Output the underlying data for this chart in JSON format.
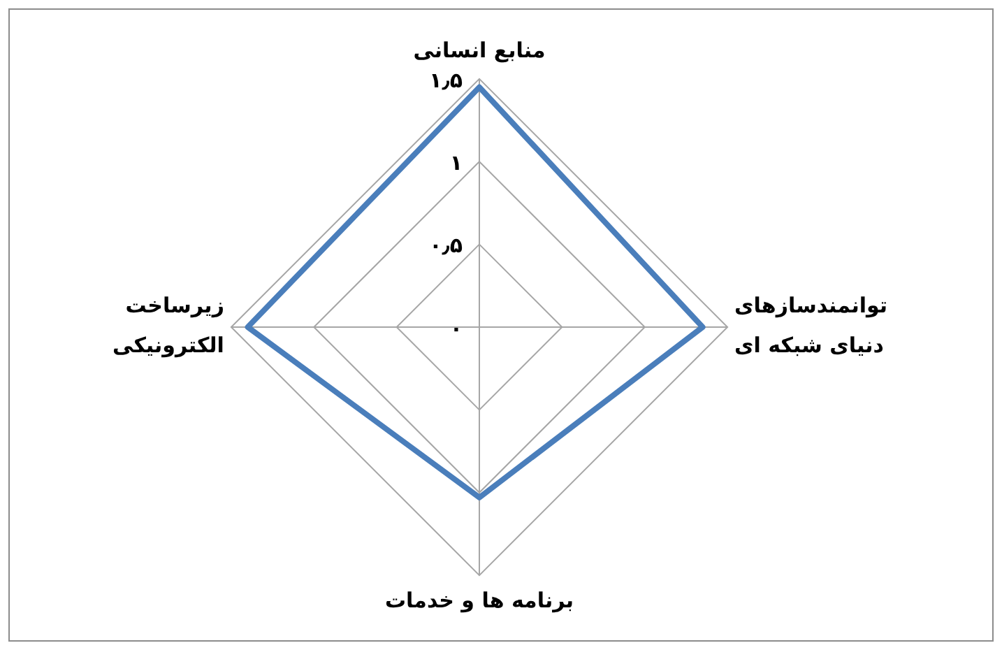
{
  "chart_data": {
    "type": "radar",
    "categories": [
      "منابع انسانی",
      "توانمندسازهای دنیای شبکه ای",
      "برنامه ها و خدمات",
      "زیرساخت الکترونیکی"
    ],
    "series": [
      {
        "color": "#4a7ebb",
        "values": [
          1.45,
          1.35,
          1.03,
          1.4
        ]
      }
    ],
    "ylim": [
      0,
      1.5
    ],
    "yticks": [
      {
        "value": 0,
        "label": "۰"
      },
      {
        "value": 0.5,
        "label": "۰٫۵"
      },
      {
        "value": 1,
        "label": "۱"
      },
      {
        "value": 1.5,
        "label": "۱٫۵"
      }
    ],
    "grid": true,
    "legend": false,
    "marker": "none",
    "line_style": "solid"
  }
}
